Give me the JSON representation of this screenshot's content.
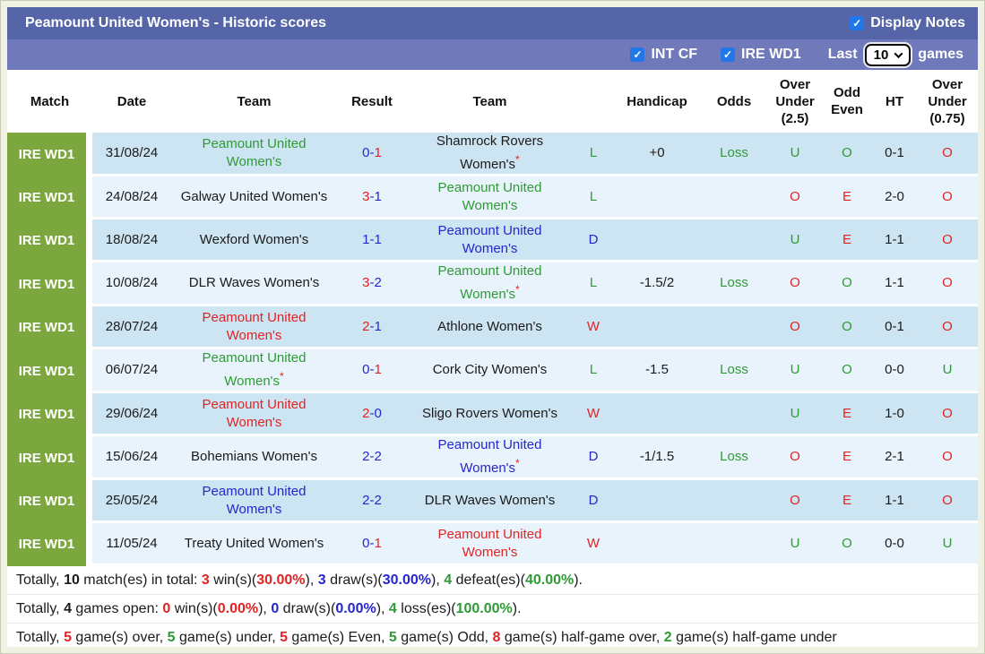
{
  "header": {
    "title": "Peamount United Women's - Historic scores",
    "display_notes": {
      "label": "Display Notes",
      "checked": true
    }
  },
  "filter_bar": {
    "checkboxes": [
      {
        "label": "INT CF",
        "checked": true
      },
      {
        "label": "IRE WD1",
        "checked": true
      }
    ],
    "last_label": "Last",
    "last_games_value": "10",
    "games_label": "games"
  },
  "table": {
    "headers": [
      "Match",
      "Date",
      "Team",
      "Result",
      "Team",
      "",
      "Handicap",
      "Odds",
      "Over\nUnder\n(2.5)",
      "Odd\nEven",
      "HT",
      "Over\nUnder\n(0.75)"
    ],
    "rows": [
      {
        "league": "IRE WD1",
        "date": "31/08/24",
        "team1": {
          "name": "Peamount United Women's",
          "color": "green",
          "star": false
        },
        "result": [
          {
            "t": "0",
            "c": "blue"
          },
          {
            "t": "-",
            "c": "blue"
          },
          {
            "t": "1",
            "c": "red"
          }
        ],
        "team2": {
          "name": "Shamrock Rovers Women's",
          "color": "black",
          "star": true
        },
        "wdl": {
          "t": "L",
          "c": "green"
        },
        "handicap": "+0",
        "odds": {
          "t": "Loss",
          "c": "green"
        },
        "ou25": {
          "t": "U",
          "c": "green"
        },
        "odd_even": {
          "t": "O",
          "c": "green"
        },
        "ht": "0-1",
        "ou075": {
          "t": "O",
          "c": "red"
        }
      },
      {
        "league": "IRE WD1",
        "date": "24/08/24",
        "team1": {
          "name": "Galway United Women's",
          "color": "black",
          "star": false
        },
        "result": [
          {
            "t": "3",
            "c": "red"
          },
          {
            "t": "-",
            "c": "blue"
          },
          {
            "t": "1",
            "c": "blue"
          }
        ],
        "team2": {
          "name": "Peamount United Women's",
          "color": "green",
          "star": false
        },
        "wdl": {
          "t": "L",
          "c": "green"
        },
        "handicap": "",
        "odds": {
          "t": "",
          "c": "green"
        },
        "ou25": {
          "t": "O",
          "c": "red"
        },
        "odd_even": {
          "t": "E",
          "c": "red"
        },
        "ht": "2-0",
        "ou075": {
          "t": "O",
          "c": "red"
        }
      },
      {
        "league": "IRE WD1",
        "date": "18/08/24",
        "team1": {
          "name": "Wexford Women's",
          "color": "black",
          "star": false
        },
        "result": [
          {
            "t": "1",
            "c": "blue"
          },
          {
            "t": "-",
            "c": "blue"
          },
          {
            "t": "1",
            "c": "blue"
          }
        ],
        "team2": {
          "name": "Peamount United Women's",
          "color": "blue",
          "star": false
        },
        "wdl": {
          "t": "D",
          "c": "blue"
        },
        "handicap": "",
        "odds": {
          "t": "",
          "c": "green"
        },
        "ou25": {
          "t": "U",
          "c": "green"
        },
        "odd_even": {
          "t": "E",
          "c": "red"
        },
        "ht": "1-1",
        "ou075": {
          "t": "O",
          "c": "red"
        }
      },
      {
        "league": "IRE WD1",
        "date": "10/08/24",
        "team1": {
          "name": "DLR Waves Women's",
          "color": "black",
          "star": false
        },
        "result": [
          {
            "t": "3",
            "c": "red"
          },
          {
            "t": "-",
            "c": "blue"
          },
          {
            "t": "2",
            "c": "blue"
          }
        ],
        "team2": {
          "name": "Peamount United Women's",
          "color": "green",
          "star": true
        },
        "wdl": {
          "t": "L",
          "c": "green"
        },
        "handicap": "-1.5/2",
        "odds": {
          "t": "Loss",
          "c": "green"
        },
        "ou25": {
          "t": "O",
          "c": "red"
        },
        "odd_even": {
          "t": "O",
          "c": "green"
        },
        "ht": "1-1",
        "ou075": {
          "t": "O",
          "c": "red"
        }
      },
      {
        "league": "IRE WD1",
        "date": "28/07/24",
        "team1": {
          "name": "Peamount United Women's",
          "color": "red",
          "star": false
        },
        "result": [
          {
            "t": "2",
            "c": "red"
          },
          {
            "t": "-",
            "c": "blue"
          },
          {
            "t": "1",
            "c": "blue"
          }
        ],
        "team2": {
          "name": "Athlone Women's",
          "color": "black",
          "star": false
        },
        "wdl": {
          "t": "W",
          "c": "red"
        },
        "handicap": "",
        "odds": {
          "t": "",
          "c": "green"
        },
        "ou25": {
          "t": "O",
          "c": "red"
        },
        "odd_even": {
          "t": "O",
          "c": "green"
        },
        "ht": "0-1",
        "ou075": {
          "t": "O",
          "c": "red"
        }
      },
      {
        "league": "IRE WD1",
        "date": "06/07/24",
        "team1": {
          "name": "Peamount United Women's",
          "color": "green",
          "star": true
        },
        "result": [
          {
            "t": "0",
            "c": "blue"
          },
          {
            "t": "-",
            "c": "blue"
          },
          {
            "t": "1",
            "c": "red"
          }
        ],
        "team2": {
          "name": "Cork City Women's",
          "color": "black",
          "star": false
        },
        "wdl": {
          "t": "L",
          "c": "green"
        },
        "handicap": "-1.5",
        "odds": {
          "t": "Loss",
          "c": "green"
        },
        "ou25": {
          "t": "U",
          "c": "green"
        },
        "odd_even": {
          "t": "O",
          "c": "green"
        },
        "ht": "0-0",
        "ou075": {
          "t": "U",
          "c": "green"
        }
      },
      {
        "league": "IRE WD1",
        "date": "29/06/24",
        "team1": {
          "name": "Peamount United Women's",
          "color": "red",
          "star": false
        },
        "result": [
          {
            "t": "2",
            "c": "red"
          },
          {
            "t": "-",
            "c": "blue"
          },
          {
            "t": "0",
            "c": "blue"
          }
        ],
        "team2": {
          "name": "Sligo Rovers Women's",
          "color": "black",
          "star": false
        },
        "wdl": {
          "t": "W",
          "c": "red"
        },
        "handicap": "",
        "odds": {
          "t": "",
          "c": "green"
        },
        "ou25": {
          "t": "U",
          "c": "green"
        },
        "odd_even": {
          "t": "E",
          "c": "red"
        },
        "ht": "1-0",
        "ou075": {
          "t": "O",
          "c": "red"
        }
      },
      {
        "league": "IRE WD1",
        "date": "15/06/24",
        "team1": {
          "name": "Bohemians Women's",
          "color": "black",
          "star": false
        },
        "result": [
          {
            "t": "2",
            "c": "blue"
          },
          {
            "t": "-",
            "c": "blue"
          },
          {
            "t": "2",
            "c": "blue"
          }
        ],
        "team2": {
          "name": "Peamount United Women's",
          "color": "blue",
          "star": true
        },
        "wdl": {
          "t": "D",
          "c": "blue"
        },
        "handicap": "-1/1.5",
        "odds": {
          "t": "Loss",
          "c": "green"
        },
        "ou25": {
          "t": "O",
          "c": "red"
        },
        "odd_even": {
          "t": "E",
          "c": "red"
        },
        "ht": "2-1",
        "ou075": {
          "t": "O",
          "c": "red"
        }
      },
      {
        "league": "IRE WD1",
        "date": "25/05/24",
        "team1": {
          "name": "Peamount United Women's",
          "color": "blue",
          "star": false
        },
        "result": [
          {
            "t": "2",
            "c": "blue"
          },
          {
            "t": "-",
            "c": "blue"
          },
          {
            "t": "2",
            "c": "blue"
          }
        ],
        "team2": {
          "name": "DLR Waves Women's",
          "color": "black",
          "star": false
        },
        "wdl": {
          "t": "D",
          "c": "blue"
        },
        "handicap": "",
        "odds": {
          "t": "",
          "c": "green"
        },
        "ou25": {
          "t": "O",
          "c": "red"
        },
        "odd_even": {
          "t": "E",
          "c": "red"
        },
        "ht": "1-1",
        "ou075": {
          "t": "O",
          "c": "red"
        }
      },
      {
        "league": "IRE WD1",
        "date": "11/05/24",
        "team1": {
          "name": "Treaty United Women's",
          "color": "black",
          "star": false
        },
        "result": [
          {
            "t": "0",
            "c": "blue"
          },
          {
            "t": "-",
            "c": "blue"
          },
          {
            "t": "1",
            "c": "red"
          }
        ],
        "team2": {
          "name": "Peamount United Women's",
          "color": "red",
          "star": false
        },
        "wdl": {
          "t": "W",
          "c": "red"
        },
        "handicap": "",
        "odds": {
          "t": "",
          "c": "green"
        },
        "ou25": {
          "t": "U",
          "c": "green"
        },
        "odd_even": {
          "t": "O",
          "c": "green"
        },
        "ht": "0-0",
        "ou075": {
          "t": "U",
          "c": "green"
        }
      }
    ]
  },
  "totals": {
    "lines": [
      [
        {
          "t": "Totally, ",
          "c": "black",
          "b": false
        },
        {
          "t": "10",
          "c": "black",
          "b": true
        },
        {
          "t": " match(es) in total: ",
          "c": "black",
          "b": false
        },
        {
          "t": "3",
          "c": "red",
          "b": true
        },
        {
          "t": " win(s)(",
          "c": "black",
          "b": false
        },
        {
          "t": "30.00%",
          "c": "red",
          "b": true
        },
        {
          "t": "), ",
          "c": "black",
          "b": false
        },
        {
          "t": "3",
          "c": "blue",
          "b": true
        },
        {
          "t": " draw(s)(",
          "c": "black",
          "b": false
        },
        {
          "t": "30.00%",
          "c": "blue",
          "b": true
        },
        {
          "t": "), ",
          "c": "black",
          "b": false
        },
        {
          "t": "4",
          "c": "green",
          "b": true
        },
        {
          "t": " defeat(es)(",
          "c": "black",
          "b": false
        },
        {
          "t": "40.00%",
          "c": "green",
          "b": true
        },
        {
          "t": ").",
          "c": "black",
          "b": false
        }
      ],
      [
        {
          "t": "Totally, ",
          "c": "black",
          "b": false
        },
        {
          "t": "4",
          "c": "black",
          "b": true
        },
        {
          "t": " games open: ",
          "c": "black",
          "b": false
        },
        {
          "t": "0",
          "c": "red",
          "b": true
        },
        {
          "t": " win(s)(",
          "c": "black",
          "b": false
        },
        {
          "t": "0.00%",
          "c": "red",
          "b": true
        },
        {
          "t": "), ",
          "c": "black",
          "b": false
        },
        {
          "t": "0",
          "c": "blue",
          "b": true
        },
        {
          "t": " draw(s)(",
          "c": "black",
          "b": false
        },
        {
          "t": "0.00%",
          "c": "blue",
          "b": true
        },
        {
          "t": "), ",
          "c": "black",
          "b": false
        },
        {
          "t": "4",
          "c": "green",
          "b": true
        },
        {
          "t": " loss(es)(",
          "c": "black",
          "b": false
        },
        {
          "t": "100.00%",
          "c": "green",
          "b": true
        },
        {
          "t": ").",
          "c": "black",
          "b": false
        }
      ],
      [
        {
          "t": "Totally, ",
          "c": "black",
          "b": false
        },
        {
          "t": "5",
          "c": "red",
          "b": true
        },
        {
          "t": " game(s) over, ",
          "c": "black",
          "b": false
        },
        {
          "t": "5",
          "c": "green",
          "b": true
        },
        {
          "t": " game(s) under, ",
          "c": "black",
          "b": false
        },
        {
          "t": "5",
          "c": "red",
          "b": true
        },
        {
          "t": " game(s) Even, ",
          "c": "black",
          "b": false
        },
        {
          "t": "5",
          "c": "green",
          "b": true
        },
        {
          "t": " game(s) Odd, ",
          "c": "black",
          "b": false
        },
        {
          "t": "8",
          "c": "red",
          "b": true
        },
        {
          "t": " game(s) half-game over, ",
          "c": "black",
          "b": false
        },
        {
          "t": "2",
          "c": "green",
          "b": true
        },
        {
          "t": " game(s) half-game under",
          "c": "black",
          "b": false
        }
      ]
    ]
  },
  "colors": {
    "title_bar": "#5565a8",
    "filter_bar": "#7079ba",
    "badge_green": "#7ca63e",
    "row_alt_dark": "#cde4f2",
    "row_alt_light": "#e8f3fb",
    "checkbox_blue": "#2277e8",
    "win_red": "#e02424",
    "draw_blue": "#2626cd",
    "loss_green": "#2f9a35"
  }
}
